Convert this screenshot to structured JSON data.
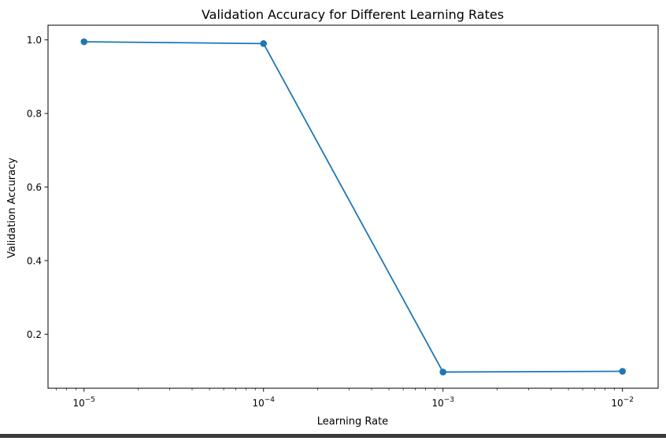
{
  "chart_data": {
    "type": "line",
    "title": "Validation Accuracy for Different Learning Rates",
    "xlabel": "Learning Rate",
    "ylabel": "Validation Accuracy",
    "x_scale": "log",
    "x_tick_labels": [
      {
        "base": "10",
        "exp": "−5",
        "value": 1e-05
      },
      {
        "base": "10",
        "exp": "−4",
        "value": 0.0001
      },
      {
        "base": "10",
        "exp": "−3",
        "value": 0.001
      },
      {
        "base": "10",
        "exp": "−2",
        "value": 0.01
      }
    ],
    "y_ticks": [
      0.2,
      0.4,
      0.6,
      0.8,
      1.0
    ],
    "y_tick_labels": [
      "0.2",
      "0.4",
      "0.6",
      "0.8",
      "1.0"
    ],
    "xlim": [
      6.3e-06,
      0.0158
    ],
    "ylim": [
      0.053,
      1.04
    ],
    "grid": false,
    "series": [
      {
        "x": [
          1e-05,
          0.0001,
          0.001,
          0.01
        ],
        "values": [
          0.995,
          0.99,
          0.097,
          0.099
        ],
        "color": "#1f77b4",
        "marker": "circle"
      }
    ]
  }
}
